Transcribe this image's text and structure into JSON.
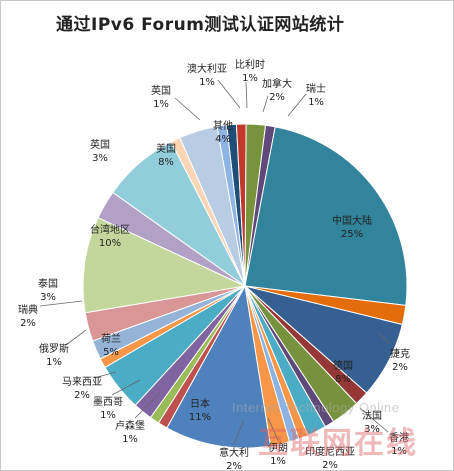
{
  "chart_data": {
    "type": "pie",
    "title": "通过IPv6 Forum测试认证网站统计",
    "slices": [
      {
        "label": "比利时",
        "pct": "1%",
        "value": 1,
        "color": "#1f4e79"
      },
      {
        "label": "",
        "pct": "",
        "value": 1,
        "color": "#c0392b"
      },
      {
        "label": "加拿大",
        "pct": "2%",
        "value": 2,
        "color": "#77933c"
      },
      {
        "label": "瑞士",
        "pct": "1%",
        "value": 1,
        "color": "#60497a"
      },
      {
        "label": "中国大陆",
        "pct": "25%",
        "value": 25,
        "color": "#31849b"
      },
      {
        "label": "捷克",
        "pct": "2%",
        "value": 2,
        "color": "#e46c0a"
      },
      {
        "label": "德国",
        "pct": "8%",
        "value": 8,
        "color": "#366092"
      },
      {
        "label": "",
        "pct": "",
        "value": 1.5,
        "color": "#953735"
      },
      {
        "label": "法国",
        "pct": "3%",
        "value": 3,
        "color": "#76923c"
      },
      {
        "label": "香港",
        "pct": "1%",
        "value": 1,
        "color": "#5f497a"
      },
      {
        "label": "印度尼西亚",
        "pct": "2%",
        "value": 2,
        "color": "#4bacc6"
      },
      {
        "label": "伊朗",
        "pct": "1%",
        "value": 1,
        "color": "#f79646"
      },
      {
        "label": "",
        "pct": "",
        "value": 1,
        "color": "#8db3e2"
      },
      {
        "label": "意大利",
        "pct": "2%",
        "value": 2,
        "color": "#f79646"
      },
      {
        "label": "日本",
        "pct": "11%",
        "value": 11,
        "color": "#4f81bd"
      },
      {
        "label": "卢森堡",
        "pct": "1%",
        "value": 1,
        "color": "#c0504d"
      },
      {
        "label": "墨西哥",
        "pct": "1%",
        "value": 1,
        "color": "#9bbb59"
      },
      {
        "label": "马来西亚",
        "pct": "2%",
        "value": 2,
        "color": "#8064a2"
      },
      {
        "label": "荷兰",
        "pct": "5%",
        "value": 5,
        "color": "#4bacc6"
      },
      {
        "label": "俄罗斯",
        "pct": "1%",
        "value": 1,
        "color": "#f79646"
      },
      {
        "label": "瑞典",
        "pct": "2%",
        "value": 2,
        "color": "#95b3d7"
      },
      {
        "label": "泰国",
        "pct": "3%",
        "value": 3,
        "color": "#da9694"
      },
      {
        "label": "台湾地区",
        "pct": "10%",
        "value": 10,
        "color": "#c3d69b"
      },
      {
        "label": "英国",
        "pct": "3%",
        "value": 3,
        "color": "#b2a1c7"
      },
      {
        "label": "美国",
        "pct": "8%",
        "value": 8,
        "color": "#92cddc"
      },
      {
        "label": "英国",
        "pct": "1%",
        "value": 1,
        "color": "#fcd5b4"
      },
      {
        "label": "其他",
        "pct": "4%",
        "value": 4,
        "color": "#b8cce4"
      },
      {
        "label": "澳大利亚",
        "pct": "1%",
        "value": 1,
        "color": "#8eb4e3"
      }
    ]
  },
  "watermark": {
    "english": "Internet Technology Online",
    "chinese": "互联网在线"
  }
}
